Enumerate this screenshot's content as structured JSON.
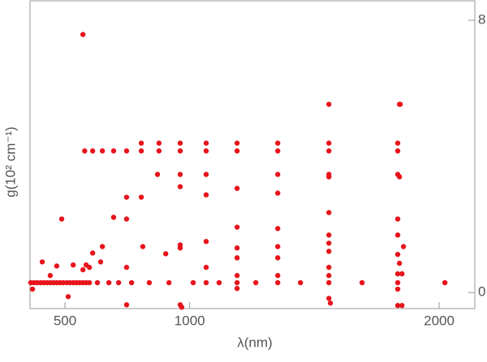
{
  "chart_data": {
    "type": "scatter",
    "x_label": "λ(nm)",
    "y_label": "g(10² cm⁻¹)",
    "xlim": [
      360,
      2143
    ],
    "ylim": [
      -0.47,
      8.57
    ],
    "xticks": [
      500,
      1000,
      2000
    ],
    "yticks": [
      0,
      8
    ],
    "series": [
      {
        "color": "#e8141c",
        "x": [
          363,
          376,
          389,
          402,
          415,
          428,
          441,
          454,
          467,
          480,
          493,
          507,
          520,
          533,
          546,
          559,
          572,
          585,
          598,
          630,
          676,
          715,
          767,
          838,
          917,
          1014,
          1066,
          1118,
          1190,
          1265,
          1353,
          1444,
          1558,
          1691,
          1834,
          2023,
          572,
          487,
          579,
          611,
          650,
          695,
          747,
          806,
          806,
          877,
          877,
          962,
          962,
          1066,
          1066,
          1190,
          1190,
          1353,
          1353,
          1558,
          1558,
          1834,
          1834,
          1558,
          1841,
          1844,
          871,
          962,
          1066,
          1353,
          1558,
          1558,
          1834,
          1841,
          747,
          806,
          962,
          1066,
          1190,
          1353,
          1558,
          1834,
          695,
          747,
          650,
          611,
          585,
          533,
          467,
          409,
          441,
          370,
          513,
          572,
          598,
          643,
          747,
          812,
          962,
          962,
          904,
          1066,
          1066,
          1190,
          1190,
          1190,
          1190,
          1190,
          1353,
          1353,
          1353,
          1353,
          1558,
          1558,
          1558,
          1558,
          1558,
          1558,
          1564,
          1834,
          1857,
          1834,
          1841,
          1834,
          1851,
          1834,
          1834,
          1851,
          962,
          968,
          747
        ],
        "values": [
          0.29,
          0.29,
          0.29,
          0.29,
          0.29,
          0.29,
          0.29,
          0.29,
          0.29,
          0.29,
          0.29,
          0.29,
          0.29,
          0.29,
          0.29,
          0.29,
          0.29,
          0.29,
          0.29,
          0.29,
          0.29,
          0.29,
          0.29,
          0.29,
          0.29,
          0.29,
          0.29,
          0.29,
          0.29,
          0.29,
          0.29,
          0.29,
          0.29,
          0.29,
          0.29,
          0.29,
          7.58,
          2.16,
          4.16,
          4.16,
          4.16,
          4.16,
          4.16,
          4.16,
          4.39,
          4.39,
          4.16,
          4.39,
          4.16,
          4.39,
          4.16,
          4.39,
          4.16,
          4.39,
          4.16,
          4.39,
          4.16,
          4.39,
          4.16,
          5.53,
          5.53,
          5.53,
          3.47,
          3.47,
          3.47,
          3.47,
          3.47,
          3.4,
          3.47,
          3.4,
          2.8,
          2.8,
          3.11,
          2.87,
          3.06,
          2.92,
          2.35,
          2.16,
          2.21,
          2.16,
          1.35,
          1.16,
          0.81,
          0.81,
          0.78,
          0.9,
          0.5,
          0.1,
          -0.12,
          0.67,
          0.74,
          0.9,
          0.74,
          1.35,
          1.4,
          1.31,
          1.14,
          1.5,
          0.74,
          1.92,
          1.31,
          1.02,
          0.5,
          0.12,
          1.88,
          1.35,
          1.02,
          0.5,
          1.69,
          1.45,
          1.21,
          0.74,
          0.5,
          -0.17,
          -0.31,
          1.69,
          1.35,
          1.12,
          0.86,
          0.55,
          0.55,
          0.1,
          -0.38,
          -0.38,
          -0.36,
          -0.43,
          -0.36
        ]
      }
    ]
  }
}
